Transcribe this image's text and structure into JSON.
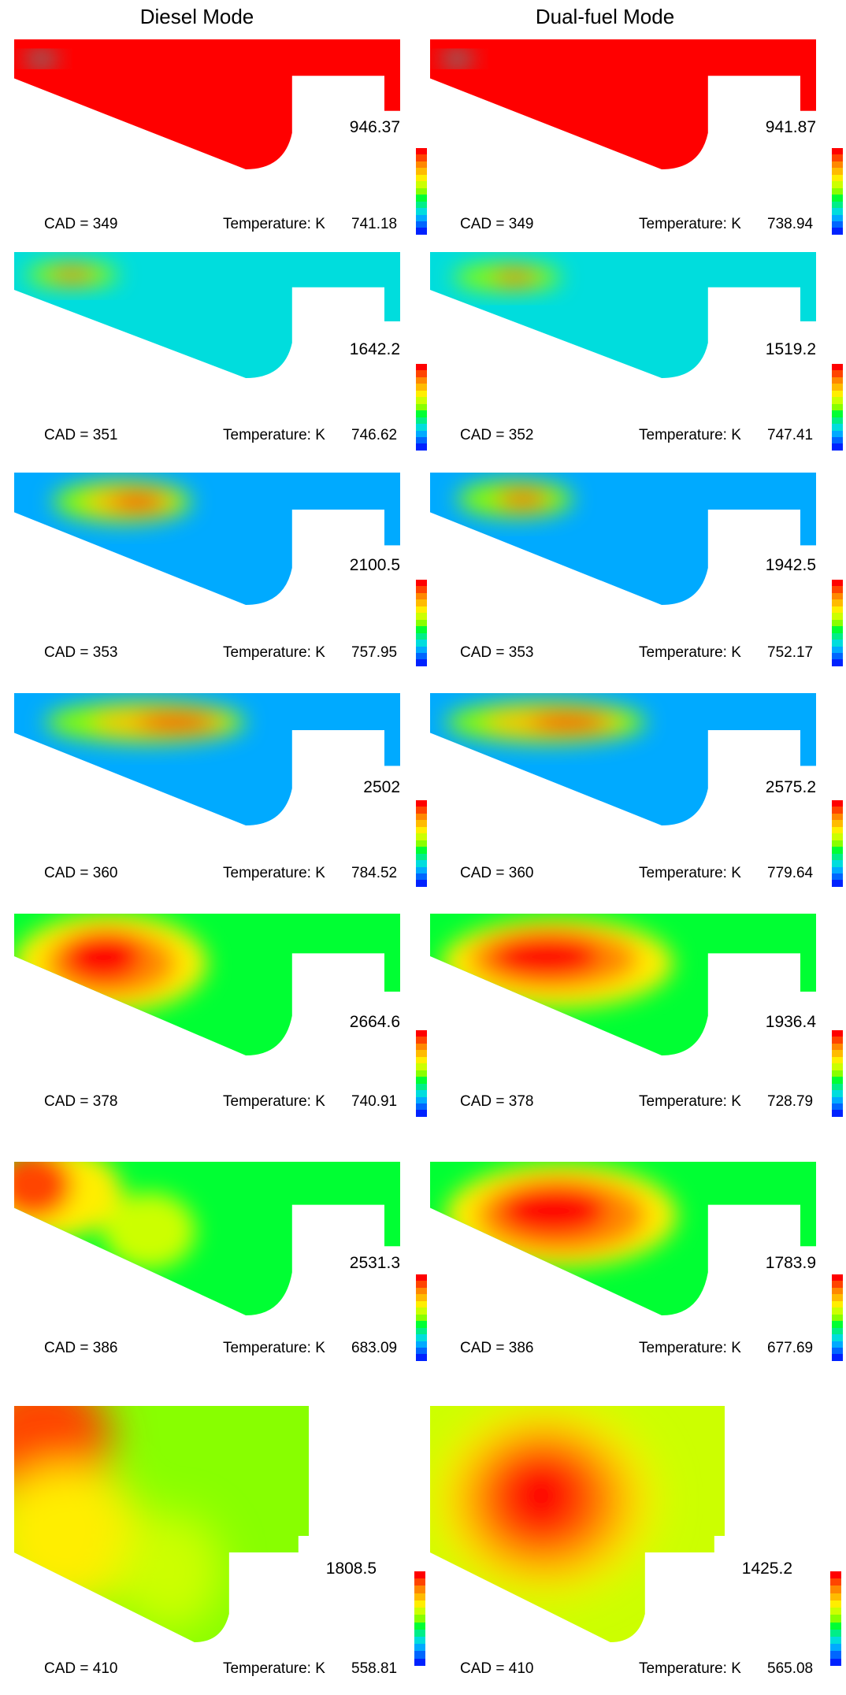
{
  "columns": {
    "left": "Diesel Mode",
    "right": "Dual-fuel Mode"
  },
  "label_prefix": {
    "cad": "CAD = ",
    "temperature": "Temperature: K"
  },
  "colormap": [
    "#ff0000",
    "#ff4400",
    "#ff8800",
    "#ffbb00",
    "#ffee00",
    "#ccff00",
    "#88ff00",
    "#00ff33",
    "#00ee88",
    "#00dddd",
    "#00aaff",
    "#0066ff",
    "#0022ff"
  ],
  "rows": [
    {
      "diesel": {
        "cad": "CAD = 349",
        "temp_label": "Temperature: K",
        "max": "946.37",
        "min": "741.18"
      },
      "dual": {
        "cad": "CAD = 349",
        "temp_label": "Temperature: K",
        "max": "941.87",
        "min": "738.94"
      }
    },
    {
      "diesel": {
        "cad": "CAD = 351",
        "temp_label": "Temperature: K",
        "max": "1642.2",
        "min": "746.62"
      },
      "dual": {
        "cad": "CAD = 352",
        "temp_label": "Temperature: K",
        "max": "1519.2",
        "min": "747.41"
      }
    },
    {
      "diesel": {
        "cad": "CAD = 353",
        "temp_label": "Temperature: K",
        "max": "2100.5",
        "min": "757.95"
      },
      "dual": {
        "cad": "CAD = 353",
        "temp_label": "Temperature: K",
        "max": "1942.5",
        "min": "752.17"
      }
    },
    {
      "diesel": {
        "cad": "CAD = 360",
        "temp_label": "Temperature: K",
        "max": "2502",
        "min": "784.52"
      },
      "dual": {
        "cad": "CAD = 360",
        "temp_label": "Temperature: K",
        "max": "2575.2",
        "min": "779.64"
      }
    },
    {
      "diesel": {
        "cad": "CAD = 378",
        "temp_label": "Temperature: K",
        "max": "2664.6",
        "min": "740.91"
      },
      "dual": {
        "cad": "CAD = 378",
        "temp_label": "Temperature: K",
        "max": "1936.4",
        "min": "728.79"
      }
    },
    {
      "diesel": {
        "cad": "CAD = 386",
        "temp_label": "Temperature: K",
        "max": "2531.3",
        "min": "683.09"
      },
      "dual": {
        "cad": "CAD = 386",
        "temp_label": "Temperature: K",
        "max": "1783.9",
        "min": "677.69"
      }
    },
    {
      "diesel": {
        "cad": "CAD = 410",
        "temp_label": "Temperature: K",
        "max": "1808.5",
        "min": "558.81"
      },
      "dual": {
        "cad": "CAD = 410",
        "temp_label": "Temperature: K",
        "max": "1425.2",
        "min": "565.08"
      }
    }
  ]
}
